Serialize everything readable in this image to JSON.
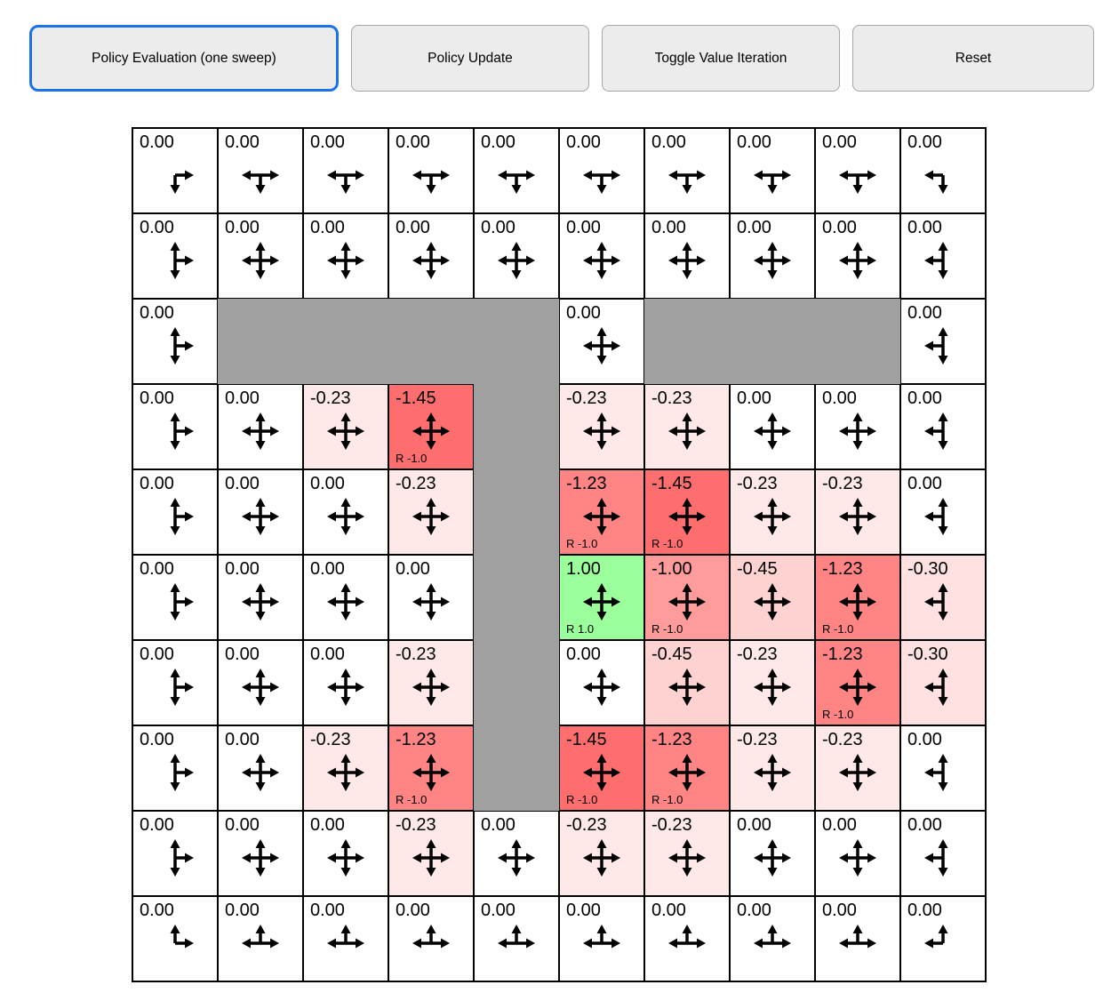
{
  "toolbar": {
    "buttons": [
      {
        "label": "Policy Evaluation (one sweep)",
        "active": true
      },
      {
        "label": "Policy Update",
        "active": false
      },
      {
        "label": "Toggle Value Iteration",
        "active": false
      },
      {
        "label": "Reset",
        "active": false
      }
    ]
  },
  "colors": {
    "active_button_border": "#1a73e8",
    "wall": "#a0a0a0",
    "grid_line": "#000000",
    "positive_cell": "#9bff9b",
    "strong_negative_cell": "#ff6e6e"
  },
  "grid": {
    "rows": 10,
    "cols": 10,
    "cells": [
      [
        {
          "v": "0.00",
          "bg": "#ffffff",
          "a": [
            "d",
            "r"
          ]
        },
        {
          "v": "0.00",
          "bg": "#ffffff",
          "a": [
            "d",
            "l",
            "r"
          ]
        },
        {
          "v": "0.00",
          "bg": "#ffffff",
          "a": [
            "d",
            "l",
            "r"
          ]
        },
        {
          "v": "0.00",
          "bg": "#ffffff",
          "a": [
            "d",
            "l",
            "r"
          ]
        },
        {
          "v": "0.00",
          "bg": "#ffffff",
          "a": [
            "d",
            "l",
            "r"
          ]
        },
        {
          "v": "0.00",
          "bg": "#ffffff",
          "a": [
            "d",
            "l",
            "r"
          ]
        },
        {
          "v": "0.00",
          "bg": "#ffffff",
          "a": [
            "d",
            "l",
            "r"
          ]
        },
        {
          "v": "0.00",
          "bg": "#ffffff",
          "a": [
            "d",
            "l",
            "r"
          ]
        },
        {
          "v": "0.00",
          "bg": "#ffffff",
          "a": [
            "d",
            "l",
            "r"
          ]
        },
        {
          "v": "0.00",
          "bg": "#ffffff",
          "a": [
            "d",
            "l"
          ]
        }
      ],
      [
        {
          "v": "0.00",
          "bg": "#ffffff",
          "a": [
            "u",
            "d",
            "r"
          ]
        },
        {
          "v": "0.00",
          "bg": "#ffffff",
          "a": [
            "u",
            "d",
            "l",
            "r"
          ]
        },
        {
          "v": "0.00",
          "bg": "#ffffff",
          "a": [
            "u",
            "d",
            "l",
            "r"
          ]
        },
        {
          "v": "0.00",
          "bg": "#ffffff",
          "a": [
            "u",
            "d",
            "l",
            "r"
          ]
        },
        {
          "v": "0.00",
          "bg": "#ffffff",
          "a": [
            "u",
            "d",
            "l",
            "r"
          ]
        },
        {
          "v": "0.00",
          "bg": "#ffffff",
          "a": [
            "u",
            "d",
            "l",
            "r"
          ]
        },
        {
          "v": "0.00",
          "bg": "#ffffff",
          "a": [
            "u",
            "d",
            "l",
            "r"
          ]
        },
        {
          "v": "0.00",
          "bg": "#ffffff",
          "a": [
            "u",
            "d",
            "l",
            "r"
          ]
        },
        {
          "v": "0.00",
          "bg": "#ffffff",
          "a": [
            "u",
            "d",
            "l",
            "r"
          ]
        },
        {
          "v": "0.00",
          "bg": "#ffffff",
          "a": [
            "u",
            "d",
            "l"
          ]
        }
      ],
      [
        {
          "v": "0.00",
          "bg": "#ffffff",
          "a": [
            "u",
            "d",
            "r"
          ]
        },
        {
          "wall": true
        },
        {
          "wall": true
        },
        {
          "wall": true
        },
        {
          "wall": true
        },
        {
          "v": "0.00",
          "bg": "#ffffff",
          "a": [
            "u",
            "d",
            "l",
            "r"
          ]
        },
        {
          "wall": true
        },
        {
          "wall": true
        },
        {
          "wall": true
        },
        {
          "v": "0.00",
          "bg": "#ffffff",
          "a": [
            "u",
            "d",
            "l"
          ]
        }
      ],
      [
        {
          "v": "0.00",
          "bg": "#ffffff",
          "a": [
            "u",
            "d",
            "r"
          ]
        },
        {
          "v": "0.00",
          "bg": "#ffffff",
          "a": [
            "u",
            "d",
            "l",
            "r"
          ]
        },
        {
          "v": "-0.23",
          "bg": "#ffe8e8",
          "a": [
            "u",
            "d",
            "l",
            "r"
          ]
        },
        {
          "v": "-1.45",
          "bg": "#ff6e6e",
          "a": [
            "u",
            "d",
            "l",
            "r"
          ],
          "r": "R -1.0"
        },
        {
          "wall": true
        },
        {
          "v": "-0.23",
          "bg": "#ffe8e8",
          "a": [
            "u",
            "d",
            "l",
            "r"
          ]
        },
        {
          "v": "-0.23",
          "bg": "#ffe8e8",
          "a": [
            "u",
            "d",
            "l",
            "r"
          ]
        },
        {
          "v": "0.00",
          "bg": "#ffffff",
          "a": [
            "u",
            "d",
            "l",
            "r"
          ]
        },
        {
          "v": "0.00",
          "bg": "#ffffff",
          "a": [
            "u",
            "d",
            "l",
            "r"
          ]
        },
        {
          "v": "0.00",
          "bg": "#ffffff",
          "a": [
            "u",
            "d",
            "l"
          ]
        }
      ],
      [
        {
          "v": "0.00",
          "bg": "#ffffff",
          "a": [
            "u",
            "d",
            "r"
          ]
        },
        {
          "v": "0.00",
          "bg": "#ffffff",
          "a": [
            "u",
            "d",
            "l",
            "r"
          ]
        },
        {
          "v": "0.00",
          "bg": "#ffffff",
          "a": [
            "u",
            "d",
            "l",
            "r"
          ]
        },
        {
          "v": "-0.23",
          "bg": "#ffe8e8",
          "a": [
            "u",
            "d",
            "l",
            "r"
          ]
        },
        {
          "wall": true
        },
        {
          "v": "-1.23",
          "bg": "#ff8484",
          "a": [
            "u",
            "d",
            "l",
            "r"
          ],
          "r": "R -1.0"
        },
        {
          "v": "-1.45",
          "bg": "#ff6e6e",
          "a": [
            "u",
            "d",
            "l",
            "r"
          ],
          "r": "R -1.0"
        },
        {
          "v": "-0.23",
          "bg": "#ffe8e8",
          "a": [
            "u",
            "d",
            "l",
            "r"
          ]
        },
        {
          "v": "-0.23",
          "bg": "#ffe8e8",
          "a": [
            "u",
            "d",
            "l",
            "r"
          ]
        },
        {
          "v": "0.00",
          "bg": "#ffffff",
          "a": [
            "u",
            "d",
            "l"
          ]
        }
      ],
      [
        {
          "v": "0.00",
          "bg": "#ffffff",
          "a": [
            "u",
            "d",
            "r"
          ]
        },
        {
          "v": "0.00",
          "bg": "#ffffff",
          "a": [
            "u",
            "d",
            "l",
            "r"
          ]
        },
        {
          "v": "0.00",
          "bg": "#ffffff",
          "a": [
            "u",
            "d",
            "l",
            "r"
          ]
        },
        {
          "v": "0.00",
          "bg": "#ffffff",
          "a": [
            "u",
            "d",
            "l",
            "r"
          ]
        },
        {
          "wall": true
        },
        {
          "v": "1.00",
          "bg": "#9bff9b",
          "a": [
            "u",
            "d",
            "l",
            "r"
          ],
          "r": "R 1.0"
        },
        {
          "v": "-1.00",
          "bg": "#ff9b9b",
          "a": [
            "u",
            "d",
            "l",
            "r"
          ],
          "r": "R -1.0"
        },
        {
          "v": "-0.45",
          "bg": "#ffd2d2",
          "a": [
            "u",
            "d",
            "l",
            "r"
          ]
        },
        {
          "v": "-1.23",
          "bg": "#ff8484",
          "a": [
            "u",
            "d",
            "l",
            "r"
          ],
          "r": "R -1.0"
        },
        {
          "v": "-0.30",
          "bg": "#ffe1e1",
          "a": [
            "u",
            "d",
            "l"
          ]
        }
      ],
      [
        {
          "v": "0.00",
          "bg": "#ffffff",
          "a": [
            "u",
            "d",
            "r"
          ]
        },
        {
          "v": "0.00",
          "bg": "#ffffff",
          "a": [
            "u",
            "d",
            "l",
            "r"
          ]
        },
        {
          "v": "0.00",
          "bg": "#ffffff",
          "a": [
            "u",
            "d",
            "l",
            "r"
          ]
        },
        {
          "v": "-0.23",
          "bg": "#ffe8e8",
          "a": [
            "u",
            "d",
            "l",
            "r"
          ]
        },
        {
          "wall": true
        },
        {
          "v": "0.00",
          "bg": "#ffffff",
          "a": [
            "u",
            "d",
            "l",
            "r"
          ]
        },
        {
          "v": "-0.45",
          "bg": "#ffd2d2",
          "a": [
            "u",
            "d",
            "l",
            "r"
          ]
        },
        {
          "v": "-0.23",
          "bg": "#ffe8e8",
          "a": [
            "u",
            "d",
            "l",
            "r"
          ]
        },
        {
          "v": "-1.23",
          "bg": "#ff8484",
          "a": [
            "u",
            "d",
            "l",
            "r"
          ],
          "r": "R -1.0"
        },
        {
          "v": "-0.30",
          "bg": "#ffe1e1",
          "a": [
            "u",
            "d",
            "l"
          ]
        }
      ],
      [
        {
          "v": "0.00",
          "bg": "#ffffff",
          "a": [
            "u",
            "d",
            "r"
          ]
        },
        {
          "v": "0.00",
          "bg": "#ffffff",
          "a": [
            "u",
            "d",
            "l",
            "r"
          ]
        },
        {
          "v": "-0.23",
          "bg": "#ffe8e8",
          "a": [
            "u",
            "d",
            "l",
            "r"
          ]
        },
        {
          "v": "-1.23",
          "bg": "#ff8484",
          "a": [
            "u",
            "d",
            "l",
            "r"
          ],
          "r": "R -1.0"
        },
        {
          "wall": true
        },
        {
          "v": "-1.45",
          "bg": "#ff6e6e",
          "a": [
            "u",
            "d",
            "l",
            "r"
          ],
          "r": "R -1.0"
        },
        {
          "v": "-1.23",
          "bg": "#ff8484",
          "a": [
            "u",
            "d",
            "l",
            "r"
          ],
          "r": "R -1.0"
        },
        {
          "v": "-0.23",
          "bg": "#ffe8e8",
          "a": [
            "u",
            "d",
            "l",
            "r"
          ]
        },
        {
          "v": "-0.23",
          "bg": "#ffe8e8",
          "a": [
            "u",
            "d",
            "l",
            "r"
          ]
        },
        {
          "v": "0.00",
          "bg": "#ffffff",
          "a": [
            "u",
            "d",
            "l"
          ]
        }
      ],
      [
        {
          "v": "0.00",
          "bg": "#ffffff",
          "a": [
            "u",
            "d",
            "r"
          ]
        },
        {
          "v": "0.00",
          "bg": "#ffffff",
          "a": [
            "u",
            "d",
            "l",
            "r"
          ]
        },
        {
          "v": "0.00",
          "bg": "#ffffff",
          "a": [
            "u",
            "d",
            "l",
            "r"
          ]
        },
        {
          "v": "-0.23",
          "bg": "#ffe8e8",
          "a": [
            "u",
            "d",
            "l",
            "r"
          ]
        },
        {
          "v": "0.00",
          "bg": "#ffffff",
          "a": [
            "u",
            "d",
            "l",
            "r"
          ]
        },
        {
          "v": "-0.23",
          "bg": "#ffe8e8",
          "a": [
            "u",
            "d",
            "l",
            "r"
          ]
        },
        {
          "v": "-0.23",
          "bg": "#ffe8e8",
          "a": [
            "u",
            "d",
            "l",
            "r"
          ]
        },
        {
          "v": "0.00",
          "bg": "#ffffff",
          "a": [
            "u",
            "d",
            "l",
            "r"
          ]
        },
        {
          "v": "0.00",
          "bg": "#ffffff",
          "a": [
            "u",
            "d",
            "l",
            "r"
          ]
        },
        {
          "v": "0.00",
          "bg": "#ffffff",
          "a": [
            "u",
            "d",
            "l"
          ]
        }
      ],
      [
        {
          "v": "0.00",
          "bg": "#ffffff",
          "a": [
            "u",
            "r"
          ]
        },
        {
          "v": "0.00",
          "bg": "#ffffff",
          "a": [
            "u",
            "l",
            "r"
          ]
        },
        {
          "v": "0.00",
          "bg": "#ffffff",
          "a": [
            "u",
            "l",
            "r"
          ]
        },
        {
          "v": "0.00",
          "bg": "#ffffff",
          "a": [
            "u",
            "l",
            "r"
          ]
        },
        {
          "v": "0.00",
          "bg": "#ffffff",
          "a": [
            "u",
            "l",
            "r"
          ]
        },
        {
          "v": "0.00",
          "bg": "#ffffff",
          "a": [
            "u",
            "l",
            "r"
          ]
        },
        {
          "v": "0.00",
          "bg": "#ffffff",
          "a": [
            "u",
            "l",
            "r"
          ]
        },
        {
          "v": "0.00",
          "bg": "#ffffff",
          "a": [
            "u",
            "l",
            "r"
          ]
        },
        {
          "v": "0.00",
          "bg": "#ffffff",
          "a": [
            "u",
            "l",
            "r"
          ]
        },
        {
          "v": "0.00",
          "bg": "#ffffff",
          "a": [
            "u",
            "l"
          ]
        }
      ]
    ]
  }
}
